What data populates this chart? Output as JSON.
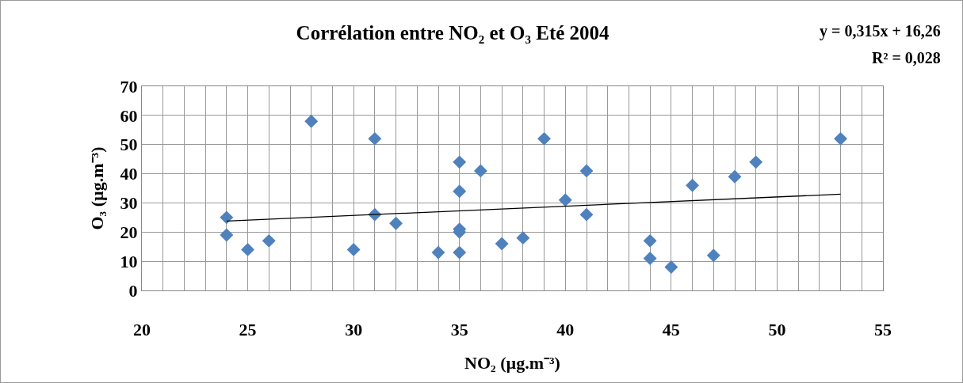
{
  "chart_data": {
    "type": "scatter",
    "title": "Corrélation entre NO₂ et O₃ Eté 2004",
    "xlabel": "NO₂ (µg.m⁻³)",
    "ylabel": "O₃ (µg.m⁻³)",
    "annotations": [
      "y = 0,315x + 16,26",
      "R² = 0,028"
    ],
    "series": [
      {
        "color": "#4f81bd",
        "marker": "diamond",
        "x": [
          24,
          24,
          25,
          26,
          28,
          30,
          31,
          31,
          32,
          34,
          35,
          35,
          35,
          35,
          35,
          36,
          37,
          38,
          39,
          40,
          41,
          41,
          44,
          44,
          45,
          46,
          47,
          48,
          49,
          53
        ],
        "values": [
          25,
          19,
          14,
          17,
          58,
          14,
          52,
          26,
          23,
          13,
          44,
          34,
          21,
          20,
          13,
          41,
          16,
          18,
          52,
          31,
          41,
          26,
          17,
          11,
          8,
          36,
          12,
          39,
          44,
          52
        ]
      },
      {
        "type": "line",
        "color": "#000000",
        "x": [
          24,
          53
        ],
        "values": [
          23.8,
          33.0
        ]
      }
    ],
    "xlim": [
      20,
      55
    ],
    "xticks": [
      20,
      25,
      30,
      35,
      40,
      45,
      50,
      55
    ],
    "ylim": [
      0,
      70
    ],
    "yticks": [
      0,
      10,
      20,
      30,
      40,
      50,
      60,
      70
    ],
    "grid": true,
    "line_style": "solid"
  }
}
